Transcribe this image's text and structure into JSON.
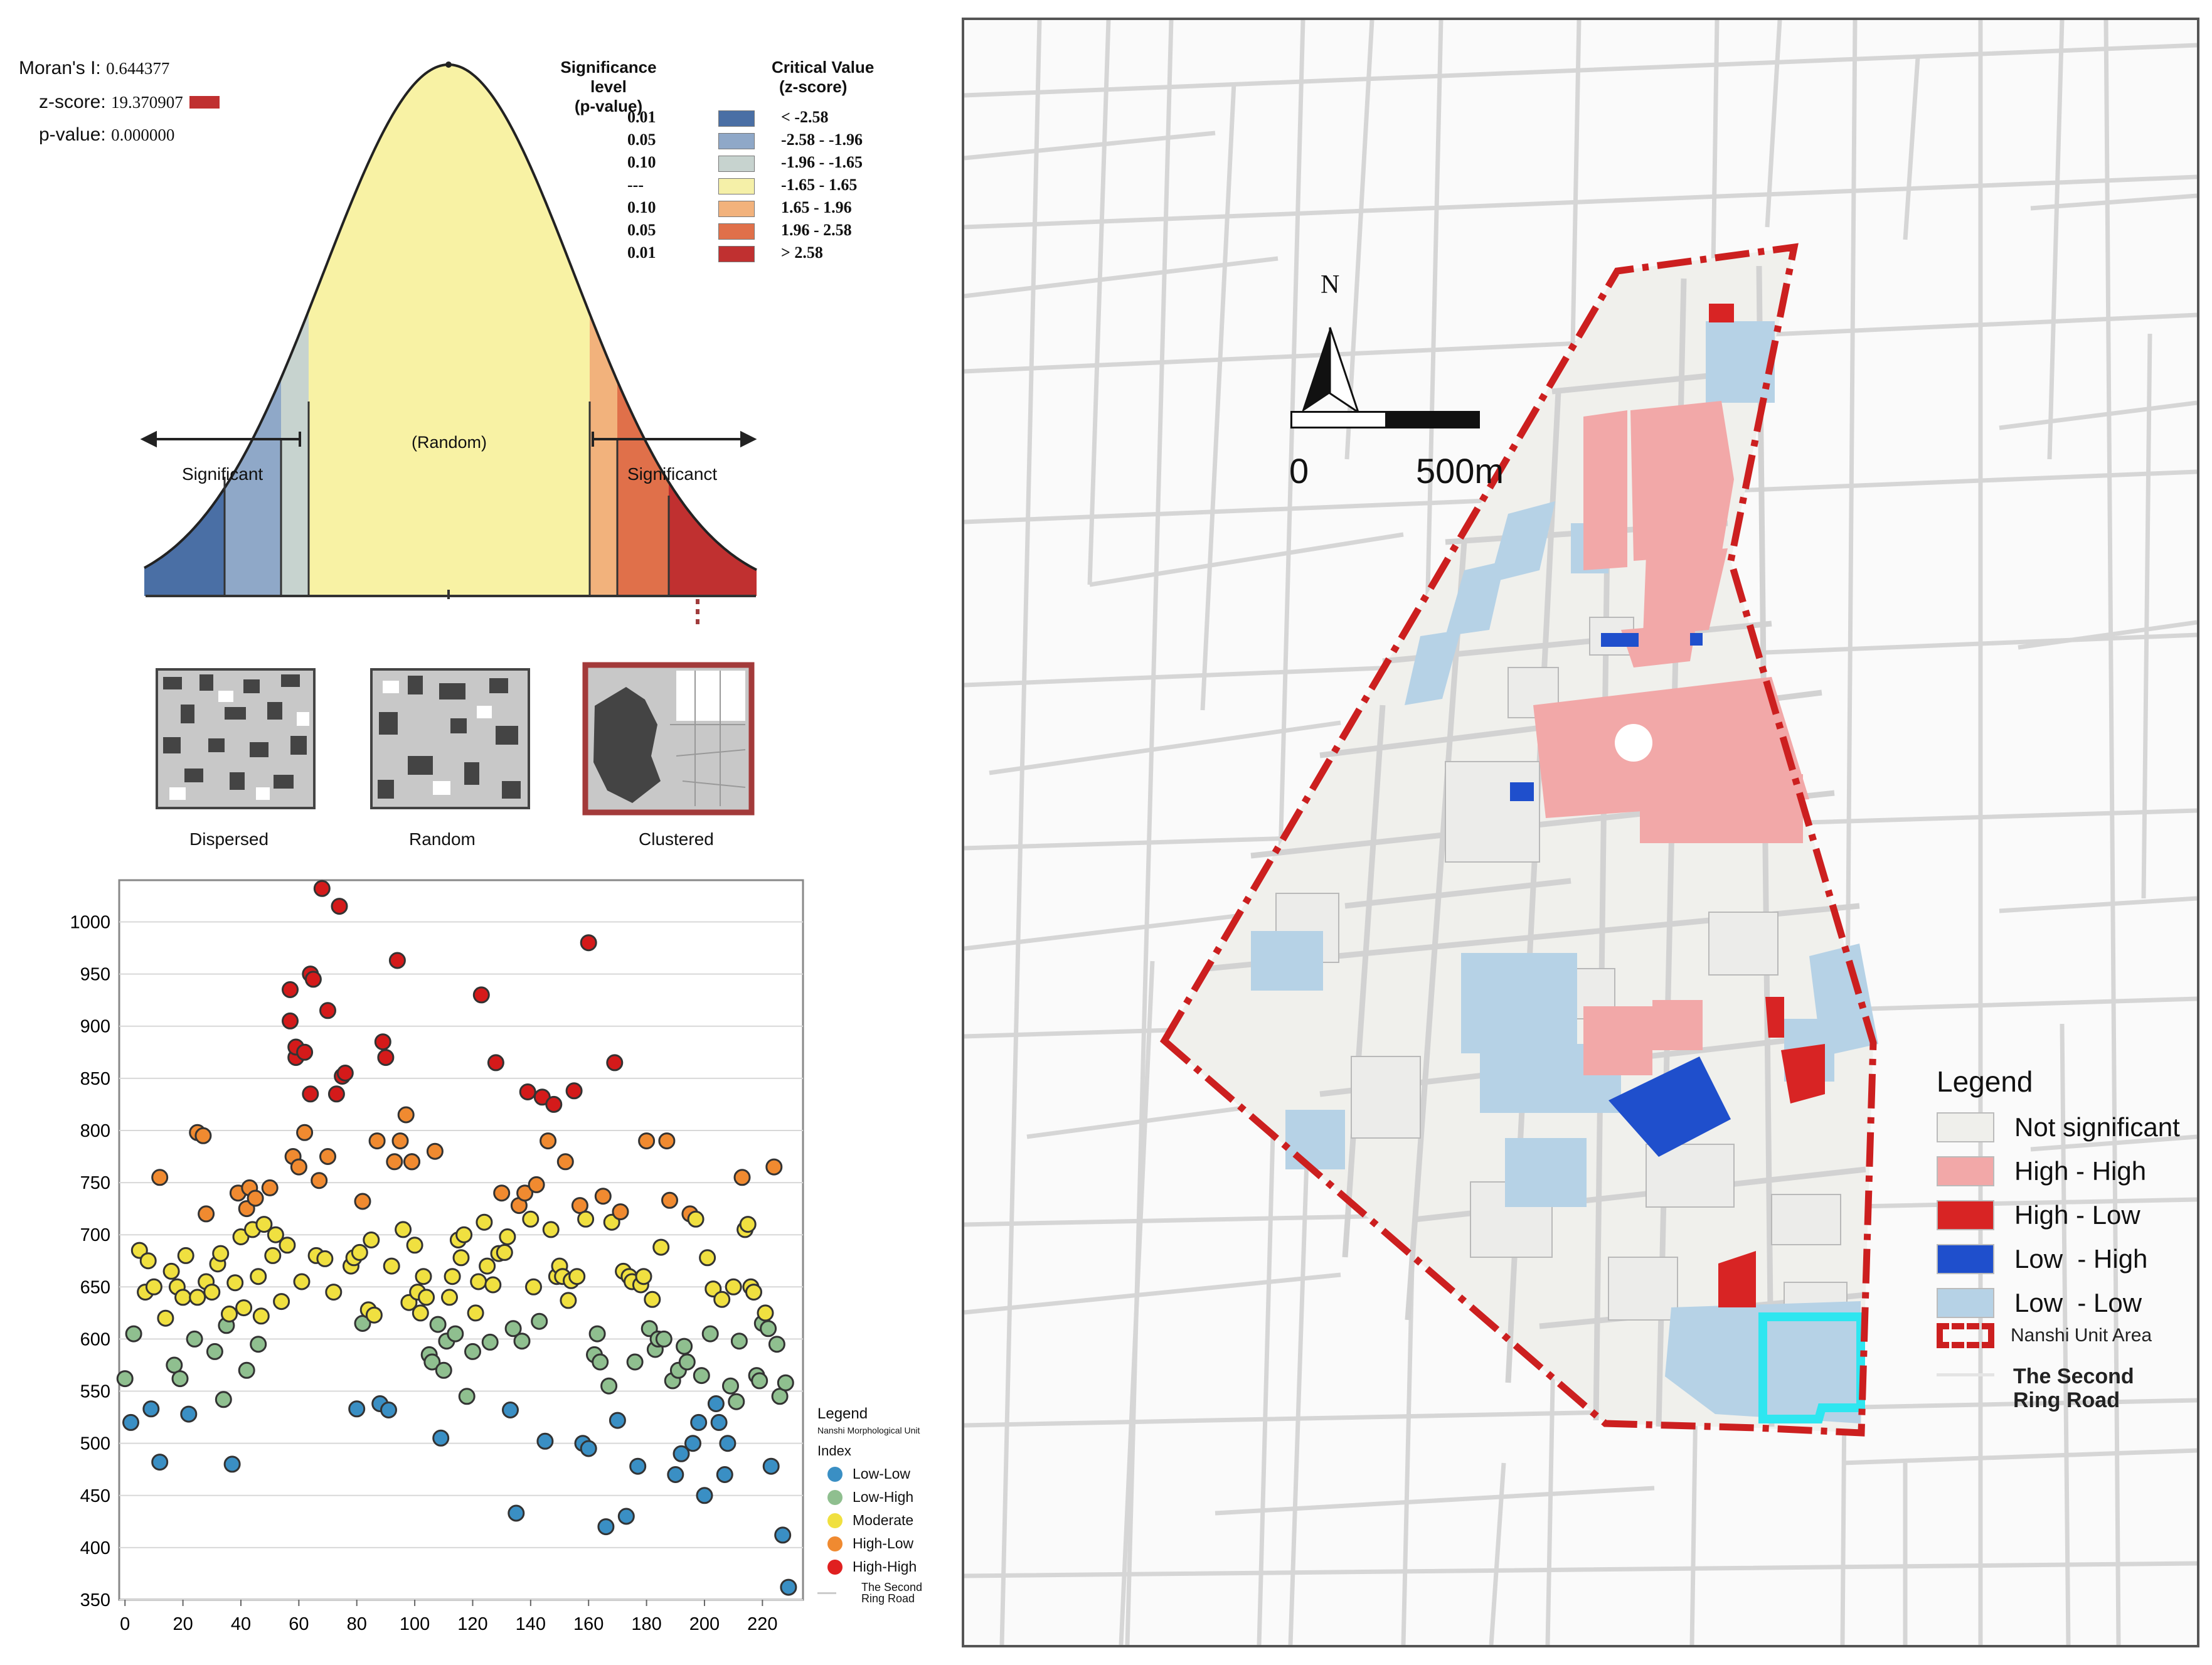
{
  "moran": {
    "stats": {
      "morans_i_label": "Moran's I:",
      "morans_i_value": "0.644377",
      "zscore_label": "z-score:",
      "zscore_value": "19.370907",
      "pvalue_label": "p-value:",
      "pvalue_value": "0.000000"
    },
    "significance_table": {
      "col1_header": "Significance level",
      "col1_sub": "(p-value)",
      "col2_header": "Critical Value",
      "col2_sub": "(z-score)",
      "rows": [
        {
          "p": "0.01",
          "z": "< -2.58",
          "color": "#4a6fa5"
        },
        {
          "p": "0.05",
          "z": "-2.58 - -1.96",
          "color": "#8fa8c8"
        },
        {
          "p": "0.10",
          "z": "-1.96 - -1.65",
          "color": "#c7d3cf"
        },
        {
          "p": "---",
          "z": "-1.65 - 1.65",
          "color": "#f5f0a8"
        },
        {
          "p": "0.10",
          "z": "1.65 - 1.96",
          "color": "#f2b27c"
        },
        {
          "p": "0.05",
          "z": "1.96 - 2.58",
          "color": "#e0704a"
        },
        {
          "p": "0.01",
          "z": "> 2.58",
          "color": "#c03030"
        }
      ]
    },
    "curve_labels": {
      "random": "(Random)",
      "significant_left": "Significant",
      "significant_right": "Significanct"
    },
    "patterns": [
      "Dispersed",
      "Random",
      "Clustered"
    ]
  },
  "chart_data": {
    "type": "scatter",
    "title": "",
    "xlabel": "",
    "ylabel": "",
    "xlim": [
      -2,
      234
    ],
    "ylim": [
      350,
      1040
    ],
    "x_ticks": [
      0,
      20,
      40,
      60,
      80,
      100,
      120,
      140,
      160,
      180,
      200,
      220
    ],
    "y_ticks": [
      350,
      400,
      450,
      500,
      550,
      600,
      650,
      700,
      750,
      800,
      850,
      900,
      950,
      1000
    ],
    "legend": {
      "title": "Legend",
      "subtitle": "Nanshi Morphological Unit",
      "index_label": "Index",
      "items": [
        {
          "label": "Low-Low",
          "color": "#3a8fc4"
        },
        {
          "label": "Low-High",
          "color": "#8fbf8f"
        },
        {
          "label": "Moderate",
          "color": "#f0e040"
        },
        {
          "label": "High-Low",
          "color": "#f08a30"
        },
        {
          "label": "High-High",
          "color": "#e02020"
        },
        {
          "label": "The Second Ring Road",
          "color": "#cccccc"
        }
      ]
    },
    "points": [
      [
        0,
        562
      ],
      [
        2,
        520
      ],
      [
        3,
        605
      ],
      [
        5,
        685
      ],
      [
        7,
        645
      ],
      [
        8,
        675
      ],
      [
        9,
        533
      ],
      [
        10,
        650
      ],
      [
        12,
        482
      ],
      [
        12,
        755
      ],
      [
        14,
        620
      ],
      [
        16,
        665
      ],
      [
        17,
        575
      ],
      [
        18,
        650
      ],
      [
        19,
        562
      ],
      [
        20,
        640
      ],
      [
        21,
        680
      ],
      [
        22,
        528
      ],
      [
        24,
        600
      ],
      [
        25,
        640
      ],
      [
        25,
        798
      ],
      [
        27,
        795
      ],
      [
        28,
        720
      ],
      [
        28,
        655
      ],
      [
        30,
        645
      ],
      [
        31,
        588
      ],
      [
        32,
        672
      ],
      [
        33,
        682
      ],
      [
        34,
        542
      ],
      [
        35,
        613
      ],
      [
        36,
        624
      ],
      [
        37,
        480
      ],
      [
        38,
        654
      ],
      [
        39,
        740
      ],
      [
        40,
        698
      ],
      [
        41,
        630
      ],
      [
        42,
        570
      ],
      [
        42,
        725
      ],
      [
        43,
        745
      ],
      [
        44,
        705
      ],
      [
        45,
        735
      ],
      [
        46,
        595
      ],
      [
        46,
        660
      ],
      [
        47,
        622
      ],
      [
        48,
        710
      ],
      [
        50,
        745
      ],
      [
        51,
        680
      ],
      [
        52,
        700
      ],
      [
        54,
        636
      ],
      [
        56,
        690
      ],
      [
        57,
        935
      ],
      [
        57,
        905
      ],
      [
        58,
        775
      ],
      [
        59,
        870
      ],
      [
        59,
        880
      ],
      [
        60,
        765
      ],
      [
        61,
        655
      ],
      [
        62,
        798
      ],
      [
        62,
        875
      ],
      [
        64,
        950
      ],
      [
        64,
        835
      ],
      [
        65,
        945
      ],
      [
        66,
        680
      ],
      [
        67,
        752
      ],
      [
        68,
        1032
      ],
      [
        69,
        677
      ],
      [
        70,
        915
      ],
      [
        70,
        775
      ],
      [
        72,
        645
      ],
      [
        73,
        835
      ],
      [
        74,
        1015
      ],
      [
        75,
        852
      ],
      [
        76,
        855
      ],
      [
        78,
        670
      ],
      [
        79,
        678
      ],
      [
        80,
        533
      ],
      [
        81,
        683
      ],
      [
        82,
        732
      ],
      [
        82,
        615
      ],
      [
        84,
        628
      ],
      [
        85,
        695
      ],
      [
        86,
        623
      ],
      [
        87,
        790
      ],
      [
        88,
        538
      ],
      [
        89,
        885
      ],
      [
        90,
        870
      ],
      [
        91,
        532
      ],
      [
        92,
        670
      ],
      [
        93,
        770
      ],
      [
        94,
        963
      ],
      [
        95,
        790
      ],
      [
        96,
        705
      ],
      [
        97,
        815
      ],
      [
        98,
        635
      ],
      [
        99,
        770
      ],
      [
        99,
        770
      ],
      [
        100,
        690
      ],
      [
        101,
        645
      ],
      [
        102,
        625
      ],
      [
        103,
        660
      ],
      [
        104,
        640
      ],
      [
        105,
        585
      ],
      [
        106,
        578
      ],
      [
        107,
        780
      ],
      [
        108,
        614
      ],
      [
        109,
        505
      ],
      [
        110,
        570
      ],
      [
        111,
        598
      ],
      [
        112,
        640
      ],
      [
        113,
        660
      ],
      [
        114,
        605
      ],
      [
        115,
        695
      ],
      [
        116,
        678
      ],
      [
        117,
        700
      ],
      [
        118,
        545
      ],
      [
        120,
        588
      ],
      [
        121,
        625
      ],
      [
        122,
        655
      ],
      [
        123,
        930
      ],
      [
        124,
        712
      ],
      [
        125,
        670
      ],
      [
        126,
        597
      ],
      [
        127,
        652
      ],
      [
        128,
        865
      ],
      [
        129,
        682
      ],
      [
        130,
        740
      ],
      [
        131,
        683
      ],
      [
        132,
        698
      ],
      [
        133,
        532
      ],
      [
        134,
        610
      ],
      [
        135,
        433
      ],
      [
        136,
        728
      ],
      [
        137,
        598
      ],
      [
        138,
        740
      ],
      [
        139,
        837
      ],
      [
        140,
        715
      ],
      [
        141,
        650
      ],
      [
        142,
        748
      ],
      [
        143,
        617
      ],
      [
        144,
        832
      ],
      [
        145,
        502
      ],
      [
        146,
        790
      ],
      [
        147,
        705
      ],
      [
        148,
        825
      ],
      [
        149,
        660
      ],
      [
        150,
        670
      ],
      [
        151,
        660
      ],
      [
        152,
        770
      ],
      [
        153,
        637
      ],
      [
        154,
        656
      ],
      [
        155,
        838
      ],
      [
        156,
        660
      ],
      [
        157,
        728
      ],
      [
        158,
        500
      ],
      [
        159,
        715
      ],
      [
        160,
        495
      ],
      [
        160,
        980
      ],
      [
        162,
        585
      ],
      [
        163,
        605
      ],
      [
        164,
        578
      ],
      [
        165,
        737
      ],
      [
        166,
        420
      ],
      [
        167,
        555
      ],
      [
        168,
        712
      ],
      [
        169,
        865
      ],
      [
        170,
        522
      ],
      [
        171,
        722
      ],
      [
        172,
        665
      ],
      [
        173,
        430
      ],
      [
        174,
        660
      ],
      [
        175,
        655
      ],
      [
        176,
        578
      ],
      [
        177,
        478
      ],
      [
        178,
        652
      ],
      [
        179,
        660
      ],
      [
        180,
        790
      ],
      [
        181,
        610
      ],
      [
        182,
        638
      ],
      [
        183,
        590
      ],
      [
        184,
        600
      ],
      [
        185,
        688
      ],
      [
        186,
        600
      ],
      [
        187,
        790
      ],
      [
        188,
        733
      ],
      [
        189,
        560
      ],
      [
        190,
        470
      ],
      [
        191,
        570
      ],
      [
        192,
        490
      ],
      [
        193,
        593
      ],
      [
        194,
        578
      ],
      [
        195,
        720
      ],
      [
        196,
        500
      ],
      [
        197,
        715
      ],
      [
        198,
        520
      ],
      [
        199,
        565
      ],
      [
        200,
        450
      ],
      [
        201,
        678
      ],
      [
        202,
        605
      ],
      [
        203,
        648
      ],
      [
        204,
        538
      ],
      [
        205,
        520
      ],
      [
        206,
        638
      ],
      [
        207,
        470
      ],
      [
        208,
        500
      ],
      [
        209,
        555
      ],
      [
        210,
        650
      ],
      [
        211,
        540
      ],
      [
        212,
        598
      ],
      [
        213,
        755
      ],
      [
        214,
        705
      ],
      [
        215,
        710
      ],
      [
        216,
        650
      ],
      [
        217,
        645
      ],
      [
        218,
        565
      ],
      [
        219,
        560
      ],
      [
        220,
        615
      ],
      [
        221,
        625
      ],
      [
        222,
        610
      ],
      [
        223,
        478
      ],
      [
        224,
        765
      ],
      [
        225,
        595
      ],
      [
        226,
        545
      ],
      [
        227,
        412
      ],
      [
        228,
        558
      ],
      [
        229,
        362
      ]
    ]
  },
  "map": {
    "north_label": "N",
    "scale_start": "0",
    "scale_end": "500m",
    "legend": {
      "title": "Legend",
      "items": [
        {
          "label": "Not significant",
          "color": "#efefeb"
        },
        {
          "label": "High - High",
          "color": "#f2a8a8"
        },
        {
          "label": "High - Low",
          "color": "#d82424"
        },
        {
          "label": "Low  - High",
          "color": "#1f4fcc"
        },
        {
          "label": "Low  - Low",
          "color": "#b6d2e6"
        }
      ],
      "boundary_label": "Nanshi Unit Area",
      "boundary_color": "#cc1f1f",
      "ring_road_label": "The Second Ring Road"
    },
    "highlight_color": "#2ee6f0"
  }
}
